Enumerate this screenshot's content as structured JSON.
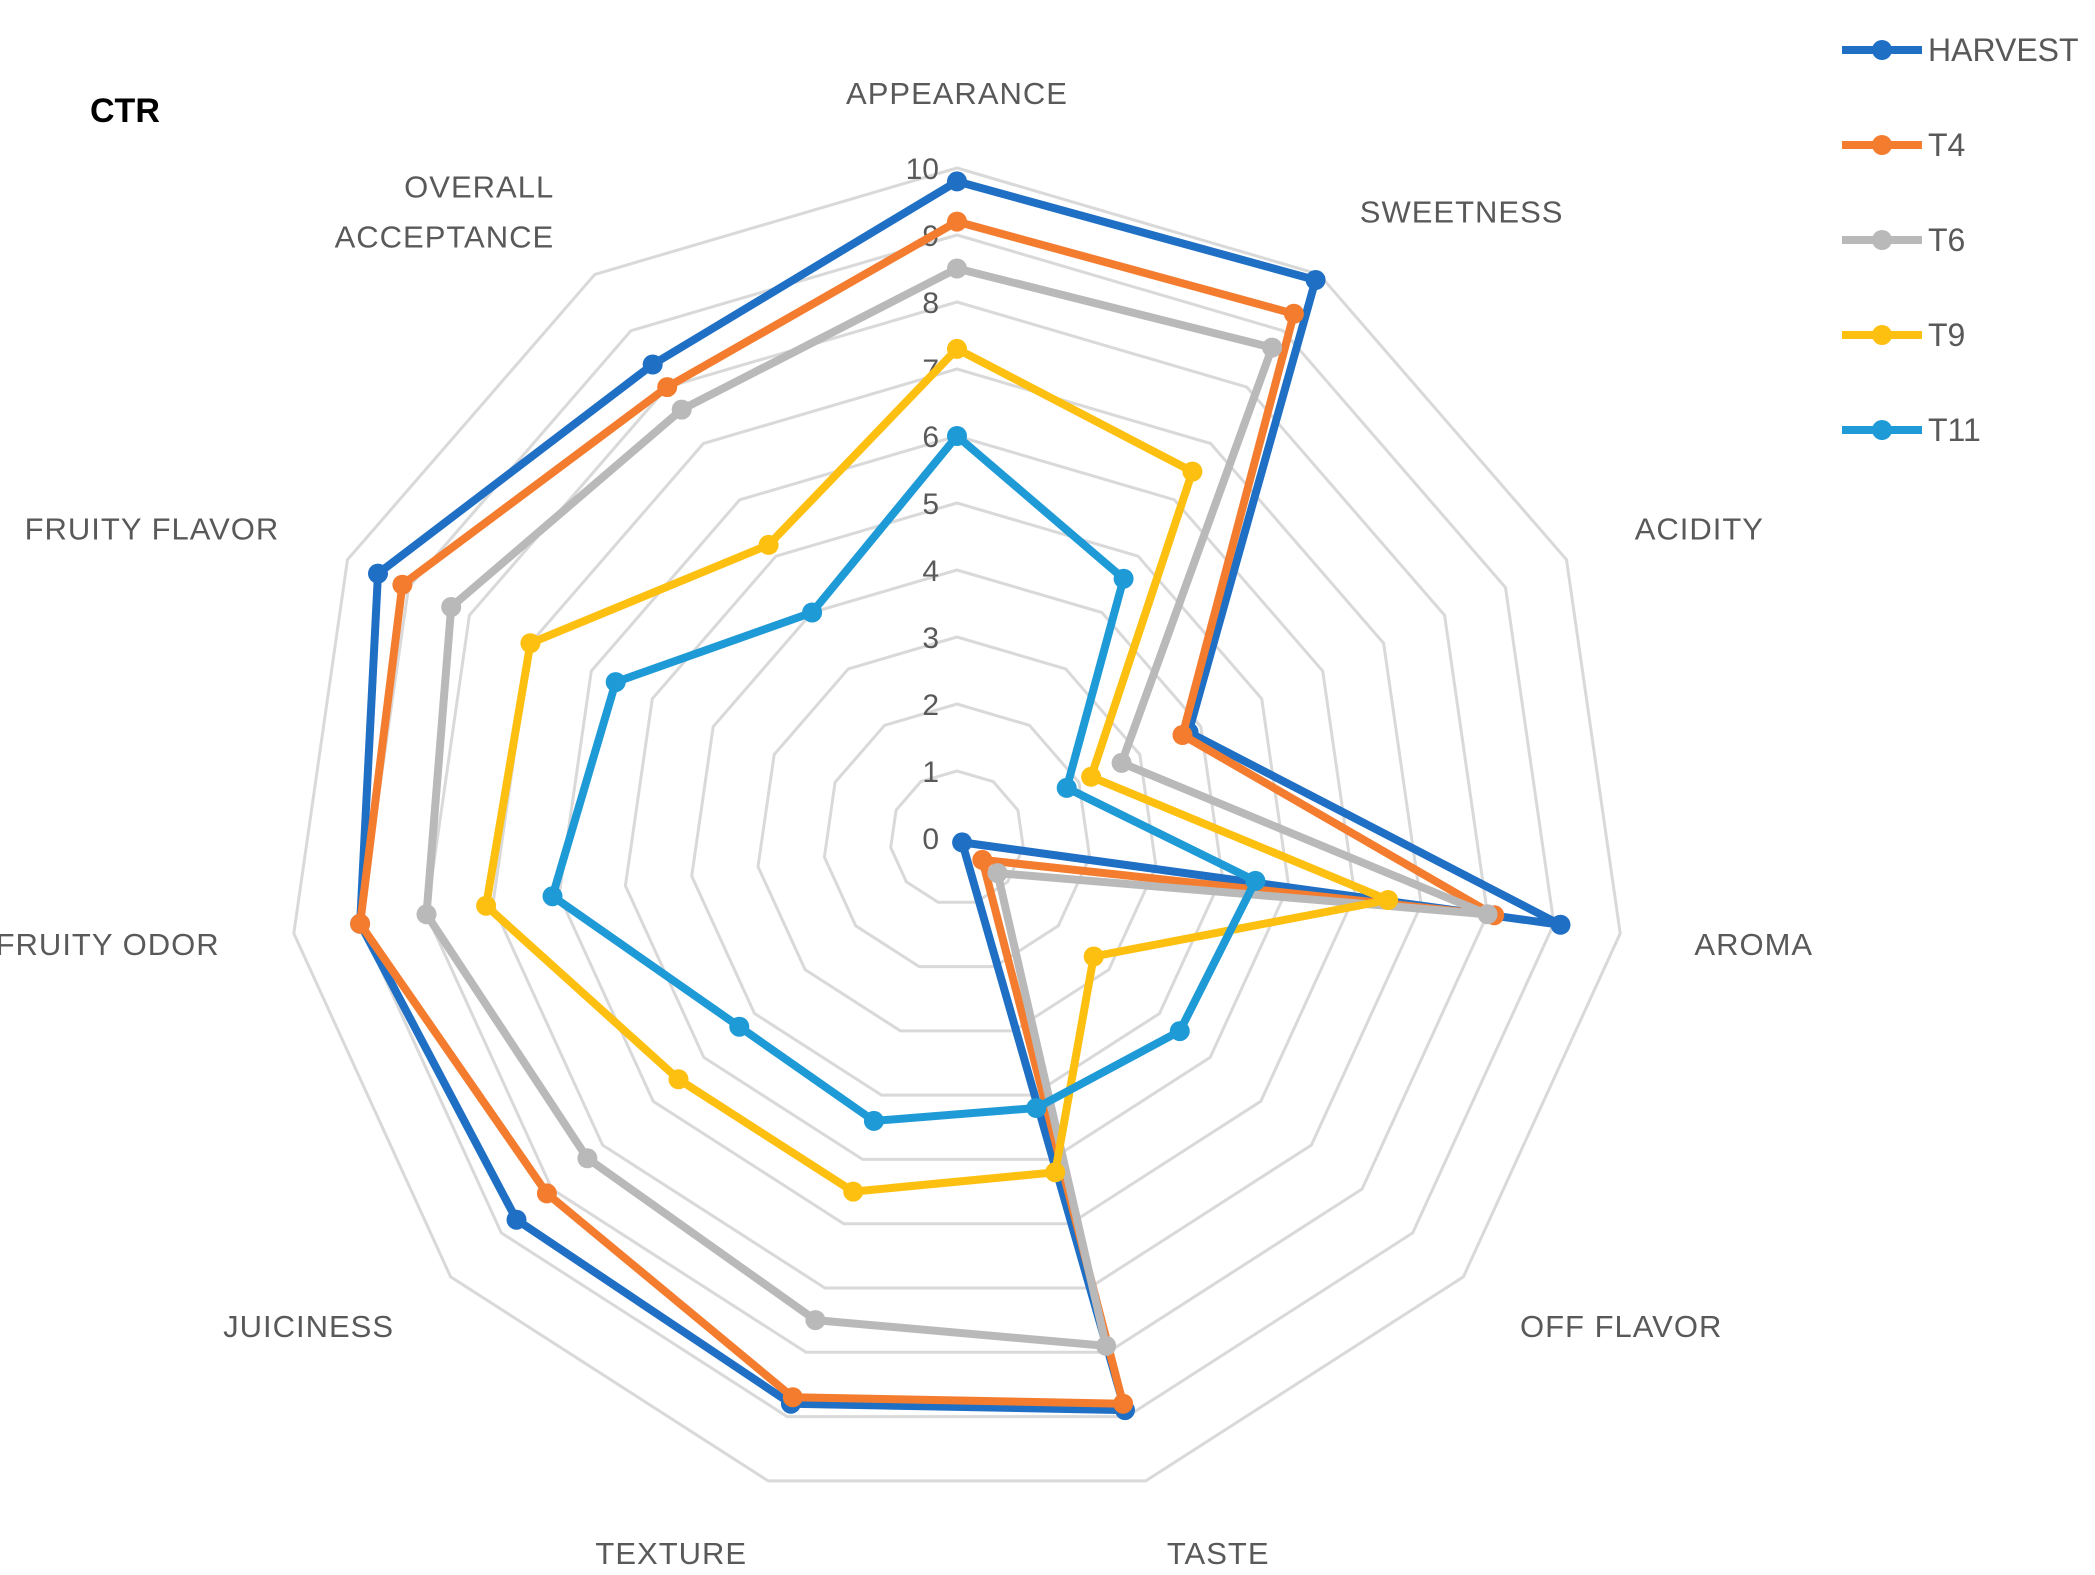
{
  "chart_data": {
    "type": "radar",
    "title": "CTR",
    "categories": [
      "APPEARANCE",
      "SWEETNESS",
      "ACIDITY",
      "AROMA",
      "OFF FLAVOR",
      "TASTE",
      "TEXTURE",
      "JUICINESS",
      "FRUITY ODOR",
      "FRUITY FLAVOR",
      "OVERALL ACCEPTANCE"
    ],
    "rlim": [
      0,
      10
    ],
    "ticks": [
      "0",
      "1",
      "2",
      "3",
      "4",
      "5",
      "6",
      "7",
      "8",
      "9",
      "10"
    ],
    "legend_position": "top-right",
    "series": [
      {
        "name": "HARVEST",
        "color": "#1F6FC5",
        "values": [
          9.8,
          9.9,
          3.8,
          9.1,
          0.1,
          8.9,
          8.8,
          8.7,
          9.0,
          9.5,
          8.4
        ]
      },
      {
        "name": "T4",
        "color": "#F47C2F",
        "values": [
          9.2,
          9.3,
          3.7,
          8.1,
          0.5,
          8.8,
          8.7,
          8.1,
          9.0,
          9.1,
          8.0
        ]
      },
      {
        "name": "T6",
        "color": "#B9B9B9",
        "values": [
          8.5,
          8.7,
          2.7,
          8.0,
          0.8,
          7.9,
          7.5,
          7.3,
          8.0,
          8.3,
          7.6
        ]
      },
      {
        "name": "T9",
        "color": "#FDC010",
        "values": [
          7.3,
          6.5,
          2.2,
          6.5,
          2.7,
          5.2,
          5.5,
          5.5,
          7.1,
          7.0,
          5.2
        ]
      },
      {
        "name": "T11",
        "color": "#1E9AD6",
        "values": [
          6.0,
          4.6,
          1.8,
          4.5,
          4.4,
          4.2,
          4.4,
          4.3,
          6.1,
          5.6,
          4.0
        ]
      }
    ]
  }
}
